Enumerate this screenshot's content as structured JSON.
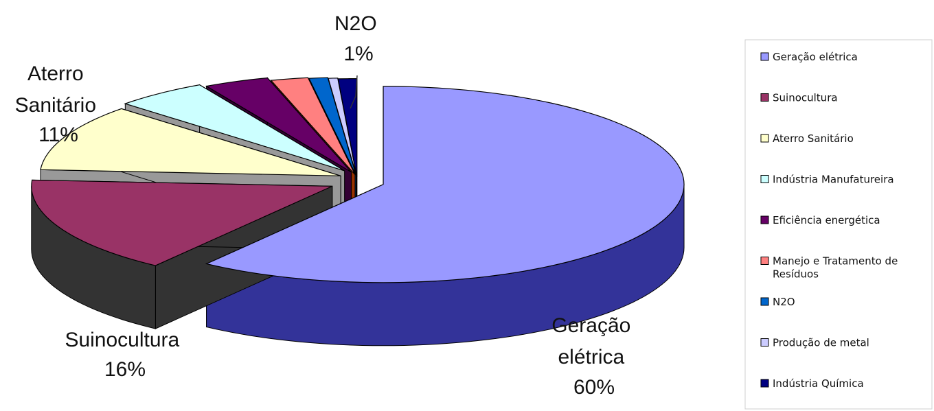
{
  "chart_data": {
    "type": "pie",
    "style": "3d-exploded",
    "legend_position": "right",
    "slices": [
      {
        "name": "Geração elétrica",
        "value": 60,
        "color": "#9999ff"
      },
      {
        "name": "Suinocultura",
        "value": 16,
        "color": "#993366"
      },
      {
        "name": "Aterro Sanitário",
        "value": 11,
        "color": "#ffffcc"
      },
      {
        "name": "Indústria Manufatureira",
        "value": 5,
        "color": "#ccffff"
      },
      {
        "name": "Eficiência energética",
        "value": 3.5,
        "color": "#660066"
      },
      {
        "name": "Manejo e Tratamento de Resíduos",
        "value": 2,
        "color": "#ff8080"
      },
      {
        "name": "N2O",
        "value": 1,
        "color": "#0066cc"
      },
      {
        "name": "Produção de metal",
        "value": 0.5,
        "color": "#ccccff"
      },
      {
        "name": "Indústria Química",
        "value": 1,
        "color": "#000080"
      }
    ],
    "data_labels": [
      {
        "lines": [
          "Geração",
          "elétrica",
          "60%"
        ]
      },
      {
        "lines": [
          "Suinocultura",
          "16%"
        ]
      },
      {
        "lines": [
          "Aterro",
          "Sanitário",
          "11%"
        ]
      },
      {
        "lines": [
          "N2O",
          "1%"
        ]
      }
    ]
  }
}
